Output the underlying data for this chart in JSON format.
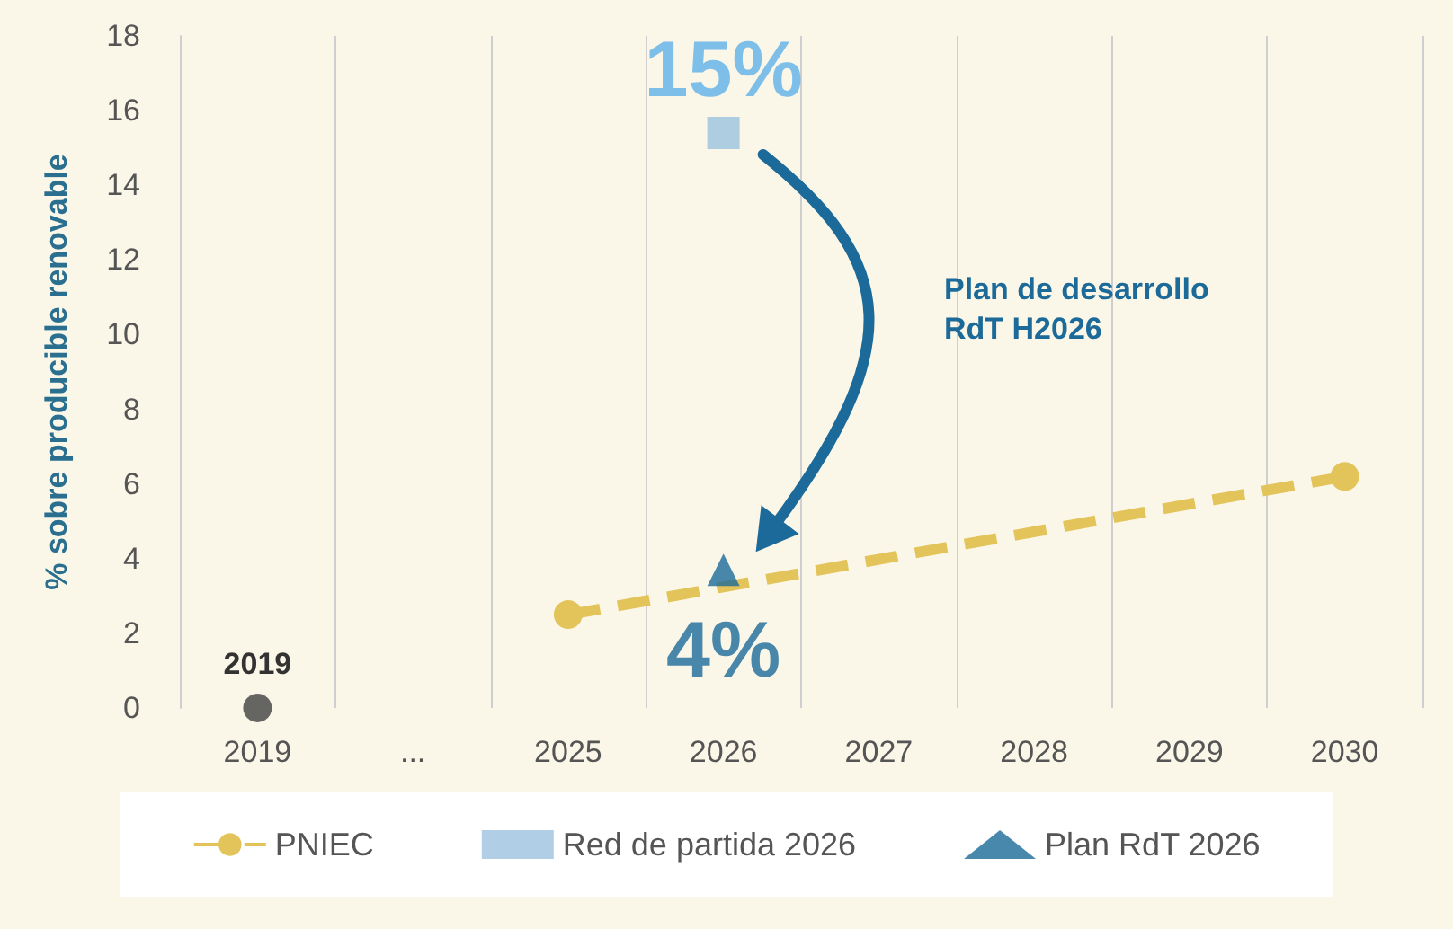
{
  "chart_data": {
    "type": "line",
    "ylabel": "% sobre producible renovable",
    "categories": [
      "2019",
      "...",
      "2025",
      "2026",
      "2027",
      "2028",
      "2029",
      "2030"
    ],
    "ylim": [
      0,
      18
    ],
    "yticks": [
      0,
      2,
      4,
      6,
      8,
      10,
      12,
      14,
      16,
      18
    ],
    "grid": "x",
    "legend": "bottom",
    "series": [
      {
        "type": "scatter",
        "color": "#404040",
        "marker": "circle",
        "values": [
          0,
          null,
          null,
          null,
          null,
          null,
          null,
          null
        ]
      },
      {
        "name": "PNIEC",
        "color": "#e3c45a",
        "marker": "circle",
        "line_style": "dashed",
        "values": [
          null,
          null,
          2.5,
          null,
          null,
          null,
          null,
          6.2
        ]
      },
      {
        "type": "scatter",
        "name": "Red de partida 2026",
        "color": "#9cc2df",
        "marker": "square",
        "values": [
          null,
          null,
          null,
          15.4,
          null,
          null,
          null,
          null
        ],
        "value_labels": [
          null,
          null,
          null,
          "15%",
          null,
          null,
          null,
          null
        ]
      },
      {
        "type": "scatter",
        "name": "Plan RdT 2026",
        "color": "#1b6a99",
        "marker": "triangle",
        "values": [
          null,
          null,
          null,
          3.7,
          null,
          null,
          null,
          null
        ],
        "value_labels": [
          null,
          null,
          null,
          "4%",
          null,
          null,
          null,
          null
        ]
      }
    ],
    "annotations": [
      {
        "text": "2019",
        "x": "2019",
        "y": 0
      },
      "Plan de desarrollo RdT H2026"
    ]
  }
}
